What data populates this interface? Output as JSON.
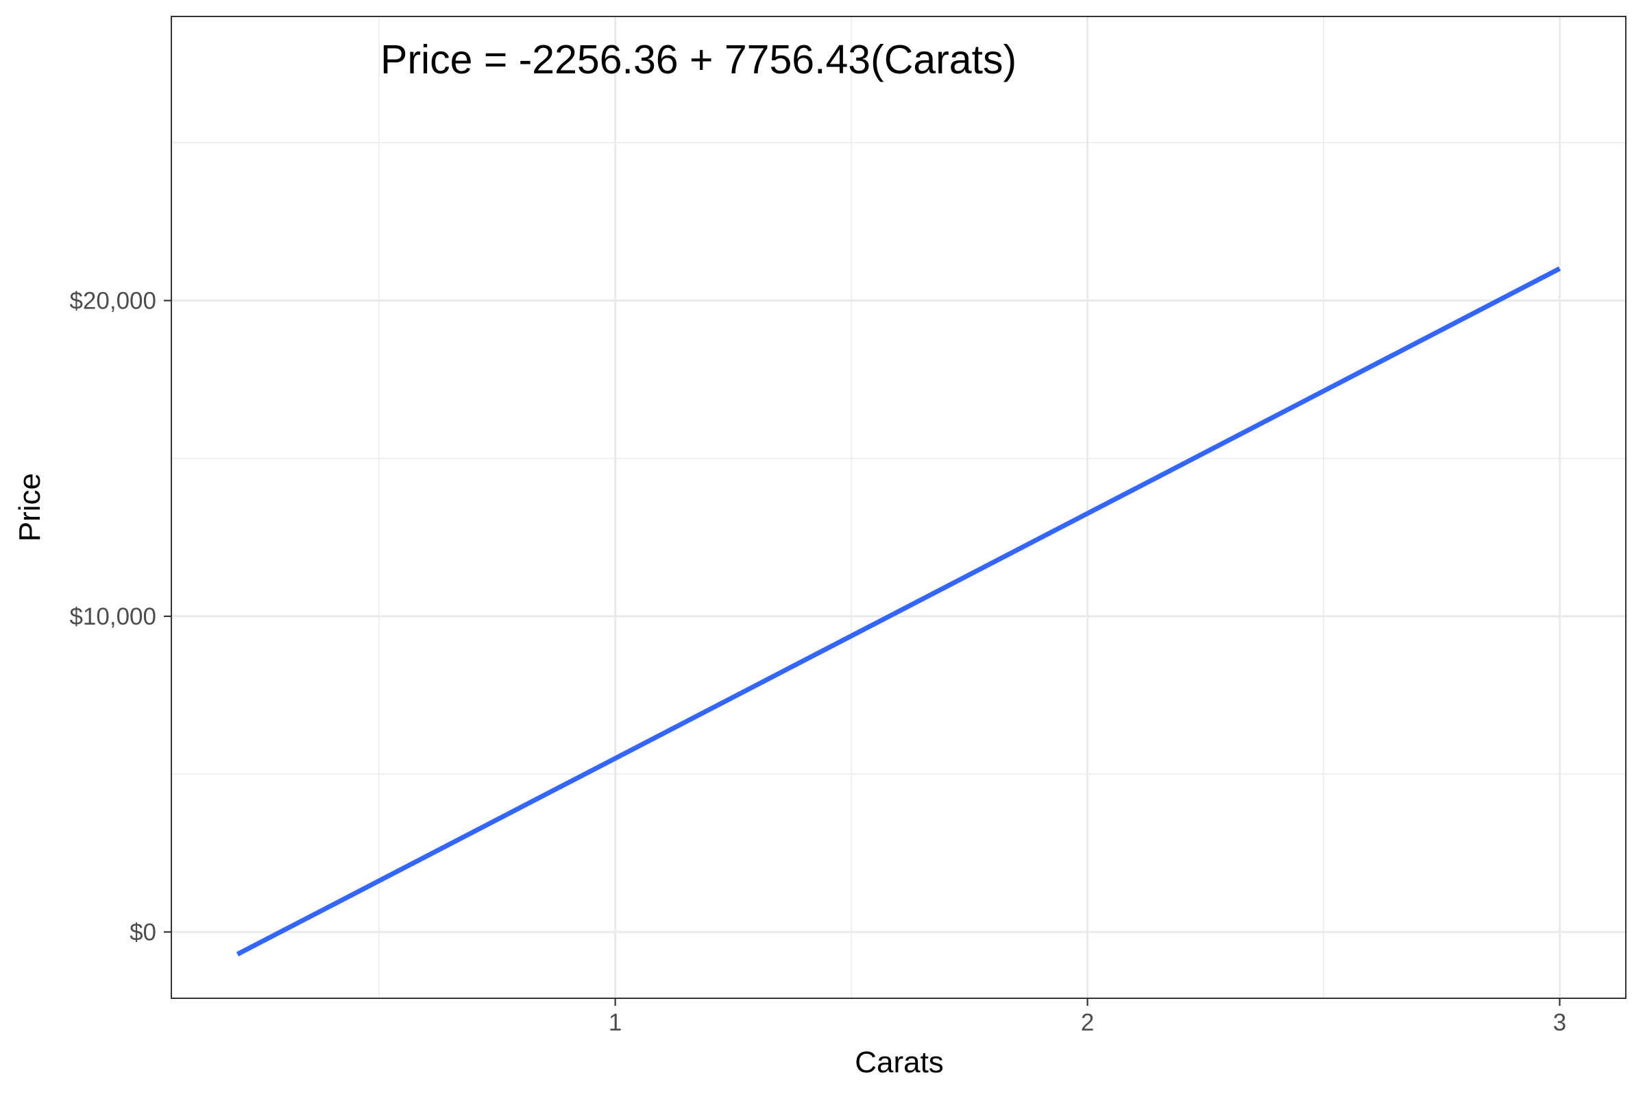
{
  "chart_data": {
    "type": "line",
    "xlabel": "Carats",
    "ylabel": "Price",
    "annotation": "Price = -2256.36 + 7756.43(Carats)",
    "intercept": -2256.36,
    "slope": 7756.43,
    "series": [
      {
        "x": [
          0.2,
          3.0
        ],
        "y": [
          -705.07,
          21012.93
        ],
        "color": "#3366ff"
      }
    ],
    "x_ticks": [
      {
        "value": 1,
        "label": "1"
      },
      {
        "value": 2,
        "label": "2"
      },
      {
        "value": 3,
        "label": "3"
      }
    ],
    "x_minor": [
      0.5,
      1.5,
      2.5
    ],
    "y_ticks": [
      {
        "value": 0,
        "label": "$0"
      },
      {
        "value": 10000,
        "label": "$10,000"
      },
      {
        "value": 20000,
        "label": "$20,000"
      }
    ],
    "y_minor": [
      5000,
      15000,
      25000
    ],
    "xlim": [
      0.06,
      3.14
    ],
    "ylim": [
      -2100,
      29000
    ],
    "grid": true,
    "legend": "none",
    "colors": {
      "line": "#3366ff",
      "grid": "#ebebeb",
      "panel_border": "#333333",
      "tick_text": "#4d4d4d",
      "tick_mark": "#333333"
    }
  }
}
